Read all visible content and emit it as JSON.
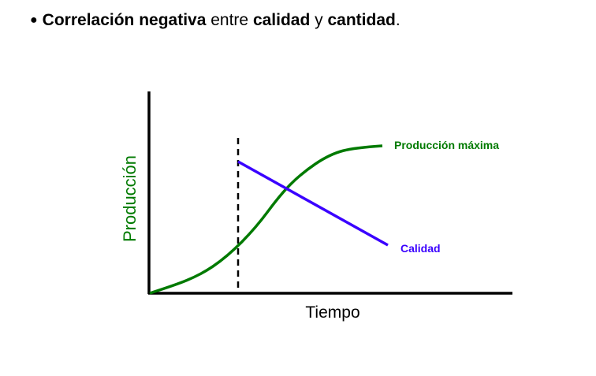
{
  "headline": {
    "bullet": "●",
    "parts": [
      {
        "text": "Correlación negativa",
        "bold": true
      },
      {
        "text": " entre ",
        "bold": false
      },
      {
        "text": "calidad",
        "bold": true
      },
      {
        "text": " y ",
        "bold": false
      },
      {
        "text": "cantidad",
        "bold": true
      },
      {
        "text": ".",
        "bold": false
      }
    ]
  },
  "diagram": {
    "y_axis_label": "Producción",
    "x_axis_label": "Tiempo",
    "curves": {
      "production": {
        "label": "Producción máxima",
        "color": "#007a00"
      },
      "quality": {
        "label": "Calidad",
        "color": "#3a00ff"
      }
    },
    "axis_color": "#000000"
  }
}
